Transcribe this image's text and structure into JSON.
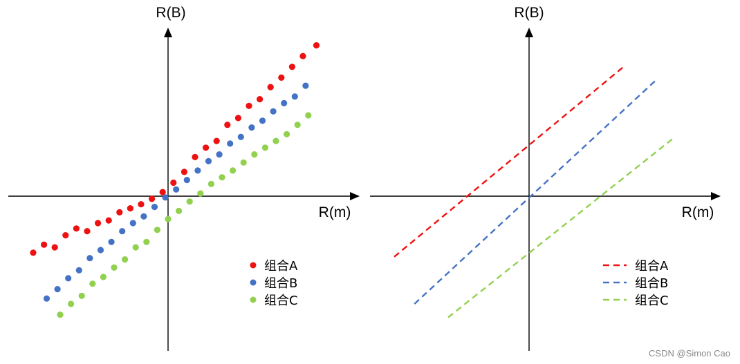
{
  "watermark": "CSDN @Simon Cao",
  "colors": {
    "A": "#ee1111",
    "B": "#4472c4",
    "C": "#92d050",
    "axis": "#000000"
  },
  "chart_data": [
    {
      "type": "scatter",
      "xlabel": "R(m)",
      "ylabel": "R(B)",
      "grid": false,
      "legend_position": "bottom-right",
      "series": [
        {
          "name": "组合A",
          "marker": "dot",
          "color": "#ee1111",
          "x": [
            -10,
            -9.2,
            -8.4,
            -7.6,
            -6.8,
            -6.0,
            -5.2,
            -4.4,
            -3.6,
            -2.8,
            -2.0,
            -1.2,
            -0.4,
            0.4,
            1.2,
            2.0,
            2.8,
            3.6,
            4.4,
            5.2,
            6.0,
            6.8,
            7.6,
            8.4,
            9.2,
            10,
            11
          ],
          "y": [
            -4.2,
            -3.6,
            -3.8,
            -2.9,
            -2.4,
            -2.6,
            -2.0,
            -1.8,
            -1.2,
            -0.9,
            -0.6,
            -0.2,
            0.3,
            1.0,
            1.8,
            2.9,
            3.6,
            4.1,
            5.3,
            5.8,
            6.7,
            7.2,
            8.1,
            8.8,
            9.6,
            10.4,
            11.2
          ]
        },
        {
          "name": "组合B",
          "marker": "dot",
          "color": "#4472c4",
          "x": [
            -9,
            -8.2,
            -7.4,
            -6.6,
            -5.8,
            -5.0,
            -4.2,
            -3.4,
            -2.6,
            -1.8,
            -1.0,
            -0.2,
            0.6,
            1.4,
            2.2,
            3.0,
            3.8,
            4.6,
            5.4,
            6.2,
            7.0,
            7.8,
            8.6,
            9.4,
            10.2
          ],
          "y": [
            -7.6,
            -6.9,
            -6.1,
            -5.5,
            -4.6,
            -4.0,
            -3.4,
            -2.6,
            -2.0,
            -1.5,
            -0.8,
            -0.1,
            0.5,
            1.2,
            1.9,
            2.6,
            3.1,
            3.9,
            4.4,
            5.1,
            5.6,
            6.3,
            6.9,
            7.4,
            8.2
          ]
        },
        {
          "name": "组合C",
          "marker": "dot",
          "color": "#92d050",
          "x": [
            -8,
            -7.2,
            -6.4,
            -5.6,
            -4.8,
            -4.0,
            -3.2,
            -2.4,
            -1.6,
            -0.8,
            0.0,
            0.8,
            1.6,
            2.4,
            3.2,
            4.0,
            4.8,
            5.6,
            6.4,
            7.2,
            8.0,
            8.8,
            9.6,
            10.4
          ],
          "y": [
            -8.8,
            -8.0,
            -7.4,
            -6.5,
            -6.0,
            -5.3,
            -4.7,
            -3.8,
            -3.4,
            -2.5,
            -1.7,
            -1.1,
            -0.4,
            0.2,
            0.9,
            1.4,
            1.9,
            2.5,
            3.1,
            3.6,
            4.1,
            4.6,
            5.3,
            6.0
          ]
        }
      ]
    },
    {
      "type": "line",
      "xlabel": "R(m)",
      "ylabel": "R(B)",
      "grid": false,
      "legend_position": "bottom-right",
      "series": [
        {
          "name": "组合A",
          "style": "dashed",
          "color": "#ee1111",
          "x": [
            -10,
            7
          ],
          "y": [
            -4.5,
            9.6
          ]
        },
        {
          "name": "组合B",
          "style": "dashed",
          "color": "#4472c4",
          "x": [
            -8.5,
            9.5
          ],
          "y": [
            -8.0,
            8.7
          ]
        },
        {
          "name": "组合C",
          "style": "dashed",
          "color": "#92d050",
          "x": [
            -6.0,
            10.7
          ],
          "y": [
            -9.0,
            4.3
          ]
        }
      ]
    }
  ]
}
